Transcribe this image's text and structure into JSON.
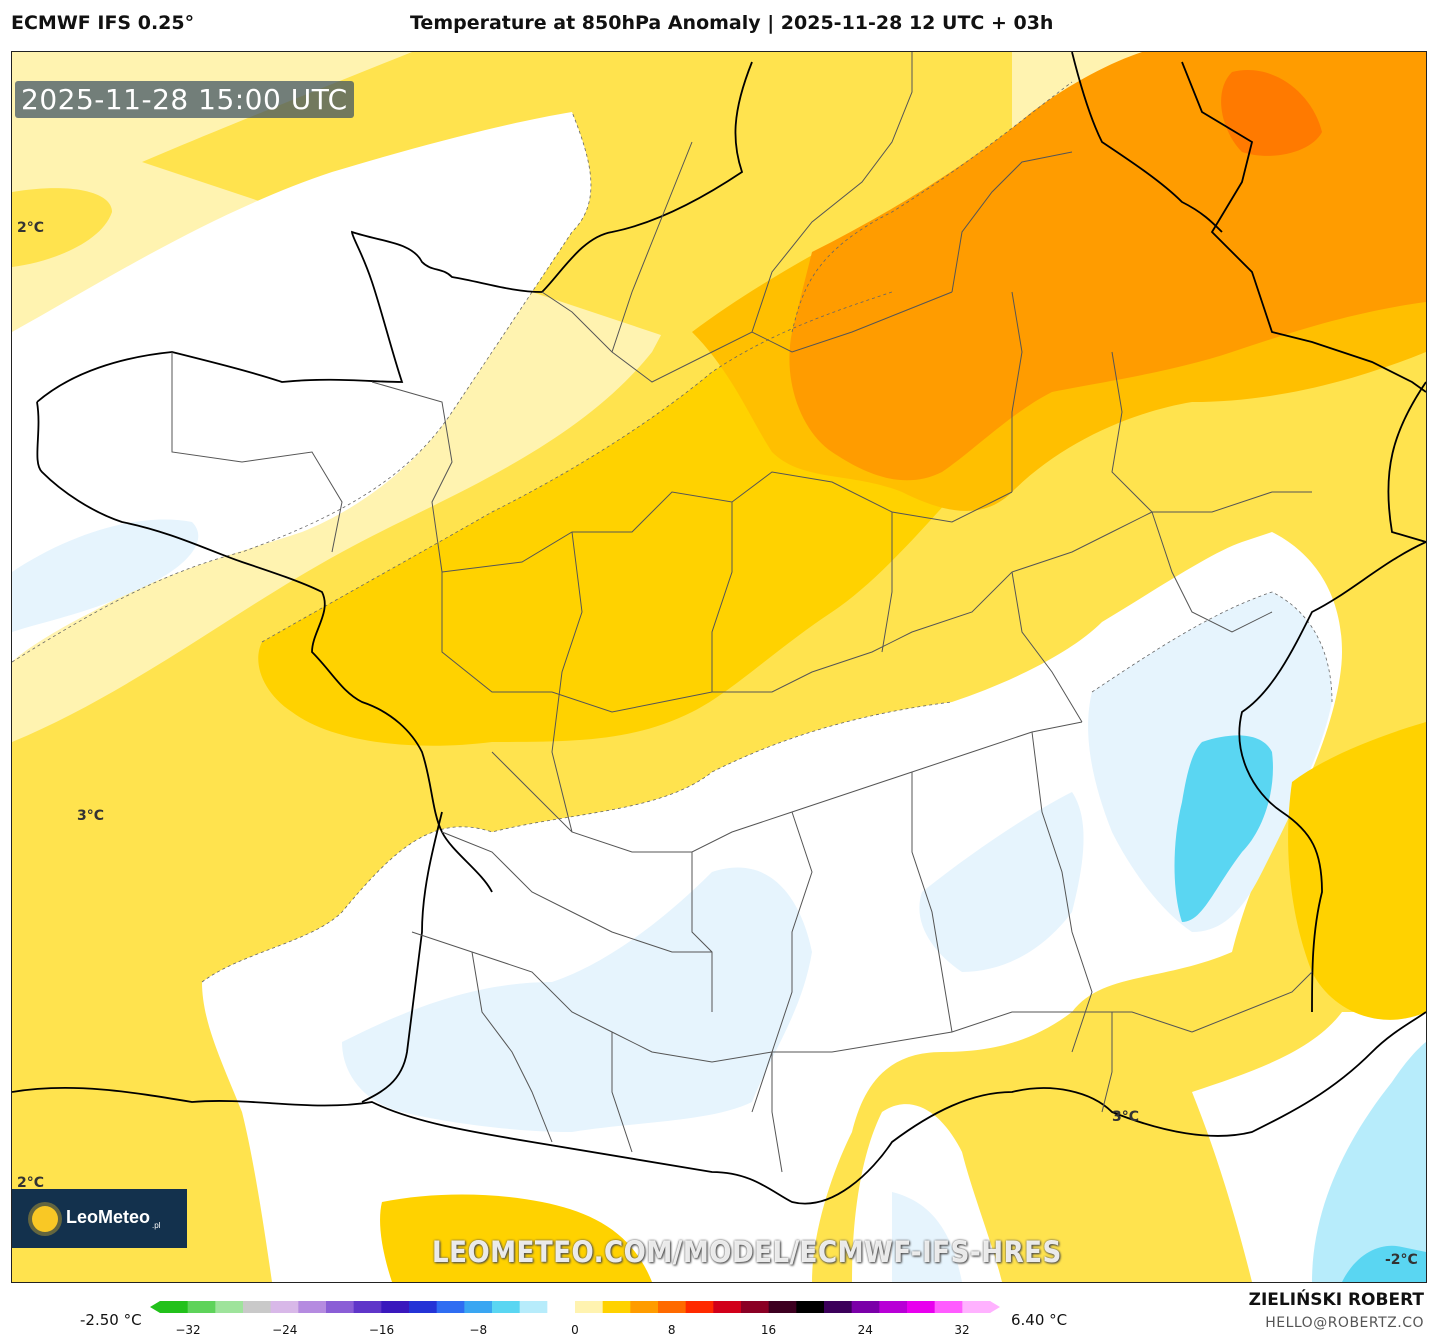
{
  "header": {
    "model": "ECMWF IFS 0.25°",
    "title": "Temperature at 850hPa Anomaly | 2025-11-28 12 UTC + 03h"
  },
  "map": {
    "timestamp": "2025-11-28 15:00 UTC",
    "contour_labels": [
      "2°C",
      "3°C",
      "3°C",
      "2°C",
      "-2°C"
    ],
    "watermark": "LEOMETEO.COM/MODEL/ECMWF-IFS-HRES",
    "logo": {
      "name": "LeoMeteo",
      "tld": ".pl"
    },
    "colors": {
      "white": "#ffffff",
      "light_blue": "#e6f4fd",
      "blue": "#5ad6f2",
      "pale_yellow": "#fff3b0",
      "yellow": "#ffe34e",
      "gold": "#ffd200",
      "orange_light": "#ffbf00",
      "orange": "#ff9c00",
      "orange_dark": "#ff7a00"
    }
  },
  "legend": {
    "min_label": "-2.50 °C",
    "max_label": "6.40 °C",
    "ticks": [
      "−32",
      "−24",
      "−16",
      "−8",
      "0",
      "8",
      "16",
      "24",
      "32"
    ],
    "colors": [
      "#22c11b",
      "#5ed35a",
      "#9ee39b",
      "#c9c9c9",
      "#d8b8e8",
      "#b58be0",
      "#8a5ed6",
      "#5f35c9",
      "#3a18bd",
      "#2433d6",
      "#2f6df2",
      "#3aa6f2",
      "#5ad6f2",
      "#b7ecfb",
      "#ffffff",
      "#fff3b0",
      "#ffd200",
      "#ff9c00",
      "#ff6a00",
      "#ff2a00",
      "#d1001a",
      "#8a0024",
      "#3d0020",
      "#000000",
      "#3b005a",
      "#7a00a8",
      "#b800d6",
      "#e800ee",
      "#ff5cff",
      "#ffb2ff"
    ]
  },
  "footer": {
    "author": "ZIELIŃSKI ROBERT",
    "contact": "HELLO@ROBERTZ.CO"
  }
}
